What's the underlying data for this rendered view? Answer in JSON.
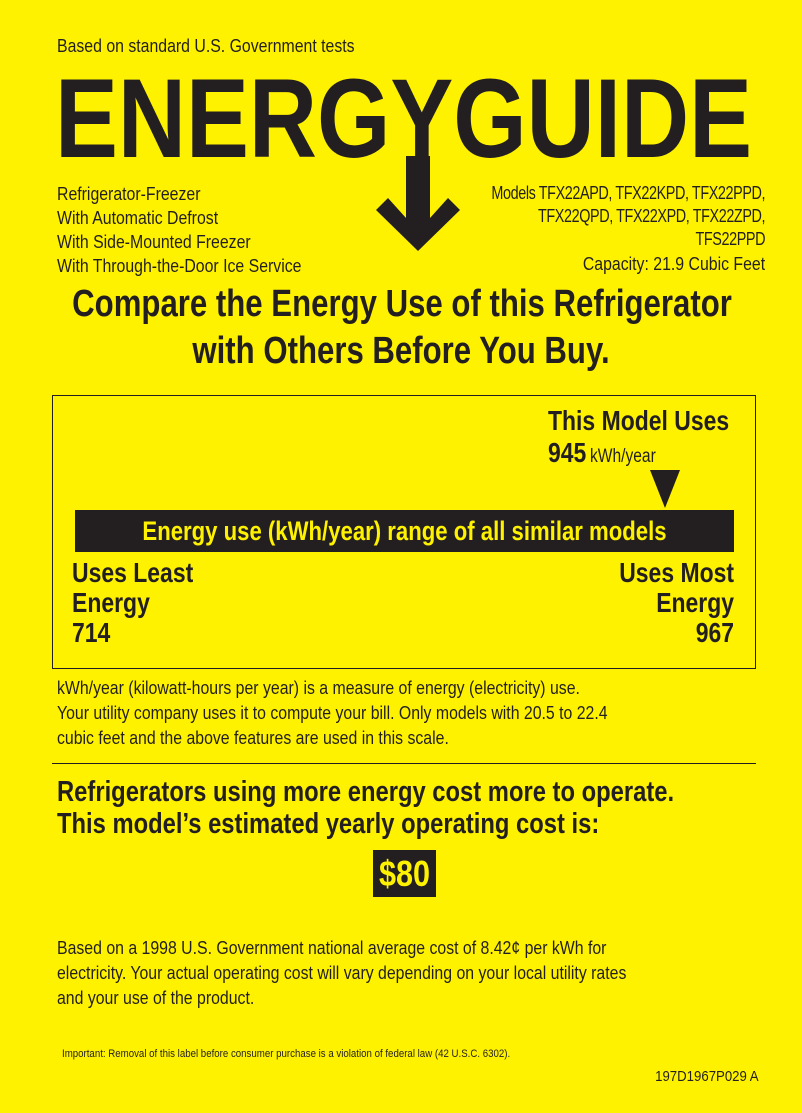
{
  "header": {
    "tests_note": "Based on standard U.S. Government tests",
    "logo_text": "ENERGYGUIDE",
    "features": [
      "Refrigerator-Freezer",
      "With Automatic Defrost",
      "With Side-Mounted Freezer",
      "With Through-the-Door Ice Service"
    ],
    "models": [
      "Models TFX22APD, TFX22KPD, TFX22PPD,",
      "TFX22QPD, TFX22XPD, TFX22ZPD,",
      "TFS22PPD"
    ],
    "capacity": "Capacity: 21.9 Cubic Feet"
  },
  "headline": [
    "Compare the Energy Use of this Refrigerator",
    "with Others Before You Buy."
  ],
  "usage": {
    "this_model_label": "This Model Uses",
    "this_model_value": "945",
    "this_model_unit": "kWh/year",
    "range_label": "Energy use (kWh/year) range of all similar models",
    "least_label": [
      "Uses Least",
      "Energy"
    ],
    "least_value": "714",
    "most_label": [
      "Uses Most",
      "Energy"
    ],
    "most_value": "967",
    "range_min": 714,
    "range_max": 967,
    "model_value": 945
  },
  "explanation": [
    "kWh/year (kilowatt-hours per year) is a measure of energy (electricity) use.",
    "Your utility company uses it to compute your bill. Only models with 20.5 to 22.4",
    "cubic feet and the above features are used in this scale."
  ],
  "cost": {
    "heading": [
      "Refrigerators using more energy cost more to operate.",
      "This model’s estimated yearly operating cost is:"
    ],
    "value": "$80",
    "note": [
      "Based on a 1998 U.S. Government national average cost of 8.42¢ per kWh for",
      "electricity. Your actual operating cost will vary depending on your local utility rates",
      "and your use of the product."
    ]
  },
  "footer": {
    "legal": "Important: Removal of this label before consumer purchase is a violation of federal law (42 U.S.C. 6302).",
    "code": "197D1967P029 A"
  },
  "colors": {
    "background": "#fff200",
    "ink": "#231f20"
  }
}
